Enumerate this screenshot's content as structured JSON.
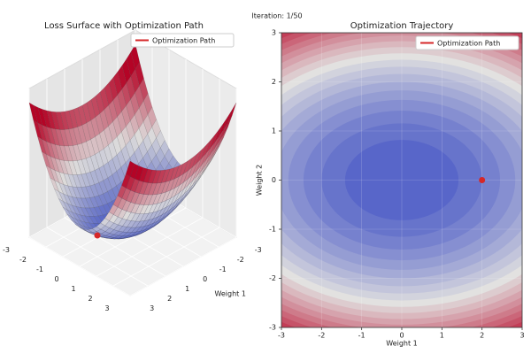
{
  "suptitle": "Iteration: 1/50",
  "chart_data": [
    {
      "type": "surface3d",
      "title": "Loss Surface with Optimization Path",
      "xlabel": "Weight 1",
      "xlim": [
        -3,
        3
      ],
      "ylim": [
        -3,
        3
      ],
      "xticks": [
        -3,
        -2,
        -1,
        0,
        1,
        2,
        3
      ],
      "yticks": [
        -3,
        -2,
        -1,
        0,
        1,
        2,
        3
      ],
      "path": {
        "name": "Optimization Path",
        "color": "#d62728",
        "x": [
          2
        ],
        "y": [
          0
        ]
      }
    },
    {
      "type": "contour",
      "title": "Optimization Trajectory",
      "xlabel": "Weight 1",
      "ylabel": "Weight 2",
      "xlim": [
        -3,
        3
      ],
      "ylim": [
        -3,
        3
      ],
      "xticks": [
        -3,
        -2,
        -1,
        0,
        1,
        2,
        3
      ],
      "yticks": [
        -3,
        -2,
        -1,
        0,
        1,
        2,
        3
      ],
      "grid": true,
      "path": {
        "name": "Optimization Path",
        "color": "#d62728",
        "x": [
          2
        ],
        "y": [
          0
        ]
      }
    }
  ]
}
